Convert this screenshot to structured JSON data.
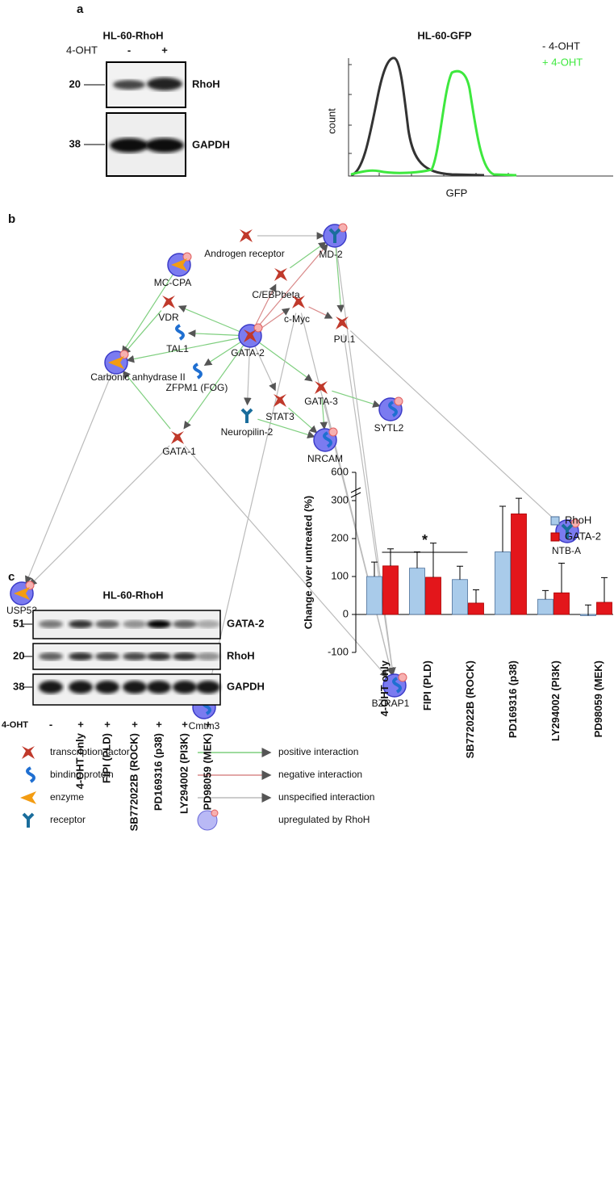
{
  "panel_a": {
    "letter": "a",
    "blot": {
      "title": "HL-60-RhoH",
      "treatment": "4-OHT",
      "signs": [
        "-",
        "+"
      ],
      "markers": [
        "20",
        "38"
      ],
      "proteins": [
        "RhoH",
        "GAPDH"
      ]
    },
    "flow": {
      "title": "HL-60-GFP",
      "legend": [
        "- 4-OHT",
        "+ 4-OHT"
      ],
      "ylabel": "count",
      "xlabel": "GFP"
    }
  },
  "panel_b": {
    "letter": "b",
    "nodes": [
      "Androgen receptor",
      "MD-2",
      "MC-CPA",
      "C/EBPbeta",
      "VDR",
      "c-Myc",
      "PU.1",
      "TAL1",
      "GATA-2",
      "Carbonic anhydrase II",
      "ZFPM1 (FOG)",
      "GATA-3",
      "STAT3",
      "SYTL2",
      "Neuropilin-2",
      "GATA-1",
      "NRCAM",
      "NTB-A",
      "USP53",
      "BZRAP1",
      "Cmtm3"
    ],
    "legend": {
      "node_types": [
        "transcription factor",
        "binding protein",
        "enzyme",
        "receptor"
      ],
      "interactions": [
        "positive interaction",
        "negative interaction",
        "unspecified interaction"
      ],
      "upregulated": "upregulated by RhoH"
    }
  },
  "panel_c": {
    "letter": "c",
    "blot": {
      "title": "HL-60-RhoH",
      "markers": [
        "51",
        "20",
        "38"
      ],
      "proteins": [
        "GATA-2",
        "RhoH",
        "GAPDH"
      ],
      "treatment": "4-OHT",
      "signs": [
        "-",
        "+",
        "+",
        "+",
        "+",
        "+",
        "+"
      ],
      "lanes": [
        "4-OHT only",
        "FIPI (PLD)",
        "SB772022B (ROCK)",
        "PD169316 (p38)",
        "LY294002 (PI3K)",
        "PD98059 (MEK)"
      ]
    }
  },
  "chart_data": {
    "type": "bar",
    "ylabel": "Change over untreated (%)",
    "categories": [
      "4-OHT only",
      "FIPI (PLD)",
      "SB772022B (ROCK)",
      "PD169316 (p38)",
      "LY294002 (PI3K)",
      "PD98059 (MEK)"
    ],
    "series": [
      {
        "name": "RhoH",
        "color": "#a9cbea",
        "values": [
          100,
          122,
          92,
          165,
          40,
          -3
        ],
        "errors": [
          38,
          43,
          35,
          120,
          23,
          28
        ]
      },
      {
        "name": "GATA-2",
        "color": "#e3161b",
        "values": [
          128,
          98,
          30,
          265,
          57,
          32
        ],
        "errors": [
          45,
          90,
          35,
          60,
          78,
          65
        ]
      }
    ],
    "ylim": [
      -100,
      600
    ],
    "yticks": [
      -100,
      0,
      100,
      200,
      300,
      600
    ],
    "axis_break": true,
    "annotation": "*",
    "legend": "upper right"
  }
}
